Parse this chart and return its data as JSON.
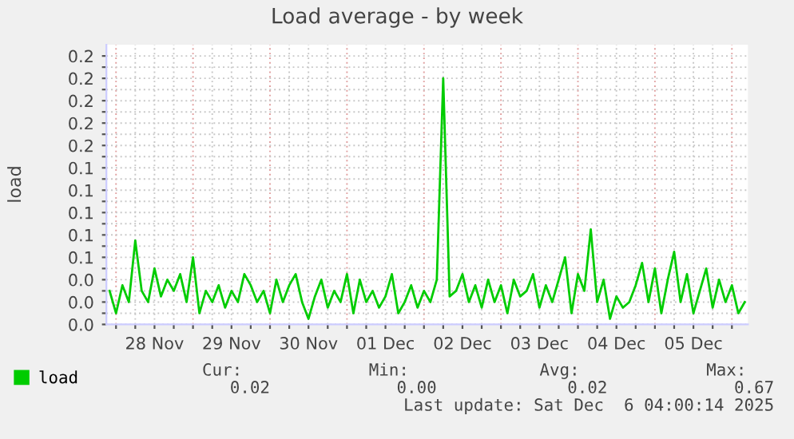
{
  "chart_data": {
    "type": "line",
    "title": "Load average - by week",
    "ylabel": "load",
    "xlim": [
      "2025-11-27T21:00",
      "2025-12-06T05:00"
    ],
    "xticks": [
      {
        "value": "2025-11-28T00:00",
        "label": null
      },
      {
        "value": "2025-11-28T06:00",
        "label": null
      },
      {
        "value": "2025-11-28T12:00",
        "label": "28 Nov"
      },
      {
        "value": "2025-11-28T18:00",
        "label": null
      },
      {
        "value": "2025-11-29T00:00",
        "label": null
      },
      {
        "value": "2025-11-29T06:00",
        "label": null
      },
      {
        "value": "2025-11-29T12:00",
        "label": "29 Nov"
      },
      {
        "value": "2025-11-29T18:00",
        "label": null
      },
      {
        "value": "2025-11-30T00:00",
        "label": null
      },
      {
        "value": "2025-11-30T06:00",
        "label": null
      },
      {
        "value": "2025-11-30T12:00",
        "label": "30 Nov"
      },
      {
        "value": "2025-11-30T18:00",
        "label": null
      },
      {
        "value": "2025-12-01T00:00",
        "label": null
      },
      {
        "value": "2025-12-01T06:00",
        "label": null
      },
      {
        "value": "2025-12-01T12:00",
        "label": "01 Dec"
      },
      {
        "value": "2025-12-01T18:00",
        "label": null
      },
      {
        "value": "2025-12-02T00:00",
        "label": null
      },
      {
        "value": "2025-12-02T06:00",
        "label": null
      },
      {
        "value": "2025-12-02T12:00",
        "label": "02 Dec"
      },
      {
        "value": "2025-12-02T18:00",
        "label": null
      },
      {
        "value": "2025-12-03T00:00",
        "label": null
      },
      {
        "value": "2025-12-03T06:00",
        "label": null
      },
      {
        "value": "2025-12-03T12:00",
        "label": "03 Dec"
      },
      {
        "value": "2025-12-03T18:00",
        "label": null
      },
      {
        "value": "2025-12-04T00:00",
        "label": null
      },
      {
        "value": "2025-12-04T06:00",
        "label": null
      },
      {
        "value": "2025-12-04T12:00",
        "label": "04 Dec"
      },
      {
        "value": "2025-12-04T18:00",
        "label": null
      },
      {
        "value": "2025-12-05T00:00",
        "label": null
      },
      {
        "value": "2025-12-05T06:00",
        "label": null
      },
      {
        "value": "2025-12-05T12:00",
        "label": "05 Dec"
      },
      {
        "value": "2025-12-05T18:00",
        "label": null
      },
      {
        "value": "2025-12-06T00:00",
        "label": null
      }
    ],
    "ylim": [
      0,
      0.25
    ],
    "yticks": [
      {
        "value": 0,
        "label": "0.0"
      },
      {
        "value": 0.01,
        "label": null
      },
      {
        "value": 0.02,
        "label": "0.0"
      },
      {
        "value": 0.03,
        "label": null
      },
      {
        "value": 0.04,
        "label": "0.0"
      },
      {
        "value": 0.05,
        "label": null
      },
      {
        "value": 0.06,
        "label": "0.1"
      },
      {
        "value": 0.07,
        "label": null
      },
      {
        "value": 0.08,
        "label": "0.1"
      },
      {
        "value": 0.09,
        "label": null
      },
      {
        "value": 0.1,
        "label": "0.1"
      },
      {
        "value": 0.11,
        "label": null
      },
      {
        "value": 0.12,
        "label": "0.1"
      },
      {
        "value": 0.13,
        "label": null
      },
      {
        "value": 0.14,
        "label": "0.1"
      },
      {
        "value": 0.15,
        "label": null
      },
      {
        "value": 0.16,
        "label": "0.2"
      },
      {
        "value": 0.17,
        "label": null
      },
      {
        "value": 0.18,
        "label": "0.2"
      },
      {
        "value": 0.19,
        "label": null
      },
      {
        "value": 0.2,
        "label": "0.2"
      },
      {
        "value": 0.21,
        "label": null
      },
      {
        "value": 0.22,
        "label": "0.2"
      },
      {
        "value": 0.23,
        "label": null
      },
      {
        "value": 0.24,
        "label": "0.2"
      }
    ],
    "grid": true,
    "legend": "bottom",
    "marker": "none",
    "line_style": "solid",
    "series": [
      {
        "name": "load",
        "color": "#00cc00",
        "x": [
          "2025-11-27T22:00",
          "2025-11-28T00:00",
          "2025-11-28T02:00",
          "2025-11-28T04:00",
          "2025-11-28T06:00",
          "2025-11-28T08:00",
          "2025-11-28T10:00",
          "2025-11-28T12:00",
          "2025-11-28T14:00",
          "2025-11-28T16:00",
          "2025-11-28T18:00",
          "2025-11-28T20:00",
          "2025-11-28T22:00",
          "2025-11-29T00:00",
          "2025-11-29T02:00",
          "2025-11-29T04:00",
          "2025-11-29T06:00",
          "2025-11-29T08:00",
          "2025-11-29T10:00",
          "2025-11-29T12:00",
          "2025-11-29T14:00",
          "2025-11-29T16:00",
          "2025-11-29T18:00",
          "2025-11-29T20:00",
          "2025-11-29T22:00",
          "2025-11-30T00:00",
          "2025-11-30T02:00",
          "2025-11-30T04:00",
          "2025-11-30T06:00",
          "2025-11-30T08:00",
          "2025-11-30T10:00",
          "2025-11-30T12:00",
          "2025-11-30T14:00",
          "2025-11-30T16:00",
          "2025-11-30T18:00",
          "2025-11-30T20:00",
          "2025-11-30T22:00",
          "2025-12-01T00:00",
          "2025-12-01T02:00",
          "2025-12-01T04:00",
          "2025-12-01T06:00",
          "2025-12-01T08:00",
          "2025-12-01T10:00",
          "2025-12-01T12:00",
          "2025-12-01T14:00",
          "2025-12-01T16:00",
          "2025-12-01T18:00",
          "2025-12-01T20:00",
          "2025-12-01T22:00",
          "2025-12-02T00:00",
          "2025-12-02T02:00",
          "2025-12-02T04:00",
          "2025-12-02T06:00",
          "2025-12-02T08:00",
          "2025-12-02T10:00",
          "2025-12-02T12:00",
          "2025-12-02T14:00",
          "2025-12-02T16:00",
          "2025-12-02T18:00",
          "2025-12-02T20:00",
          "2025-12-02T22:00",
          "2025-12-03T00:00",
          "2025-12-03T02:00",
          "2025-12-03T04:00",
          "2025-12-03T06:00",
          "2025-12-03T08:00",
          "2025-12-03T10:00",
          "2025-12-03T12:00",
          "2025-12-03T14:00",
          "2025-12-03T16:00",
          "2025-12-03T18:00",
          "2025-12-03T20:00",
          "2025-12-03T22:00",
          "2025-12-04T00:00",
          "2025-12-04T02:00",
          "2025-12-04T04:00",
          "2025-12-04T06:00",
          "2025-12-04T08:00",
          "2025-12-04T10:00",
          "2025-12-04T12:00",
          "2025-12-04T14:00",
          "2025-12-04T16:00",
          "2025-12-04T18:00",
          "2025-12-04T20:00",
          "2025-12-04T22:00",
          "2025-12-05T00:00",
          "2025-12-05T02:00",
          "2025-12-05T04:00",
          "2025-12-05T06:00",
          "2025-12-05T08:00",
          "2025-12-05T10:00",
          "2025-12-05T12:00",
          "2025-12-05T14:00",
          "2025-12-05T16:00",
          "2025-12-05T18:00",
          "2025-12-05T20:00",
          "2025-12-05T22:00",
          "2025-12-06T00:00",
          "2025-12-06T02:00",
          "2025-12-06T04:00"
        ],
        "values": [
          0.03,
          0.01,
          0.035,
          0.02,
          0.075,
          0.03,
          0.02,
          0.05,
          0.025,
          0.04,
          0.03,
          0.045,
          0.02,
          0.06,
          0.01,
          0.03,
          0.02,
          0.035,
          0.015,
          0.03,
          0.02,
          0.045,
          0.035,
          0.02,
          0.03,
          0.01,
          0.04,
          0.02,
          0.035,
          0.045,
          0.02,
          0.005,
          0.025,
          0.04,
          0.015,
          0.03,
          0.02,
          0.045,
          0.01,
          0.04,
          0.02,
          0.03,
          0.015,
          0.025,
          0.045,
          0.01,
          0.02,
          0.035,
          0.015,
          0.03,
          0.02,
          0.04,
          0.22,
          0.025,
          0.03,
          0.045,
          0.02,
          0.035,
          0.015,
          0.04,
          0.02,
          0.035,
          0.01,
          0.04,
          0.025,
          0.03,
          0.045,
          0.015,
          0.035,
          0.02,
          0.04,
          0.06,
          0.01,
          0.045,
          0.03,
          0.085,
          0.02,
          0.04,
          0.005,
          0.025,
          0.015,
          0.02,
          0.035,
          0.055,
          0.02,
          0.05,
          0.01,
          0.04,
          0.065,
          0.02,
          0.045,
          0.01,
          0.03,
          0.05,
          0.015,
          0.04,
          0.02,
          0.035,
          0.01,
          0.02
        ]
      }
    ],
    "annotations": [
      "Cur:",
      "Min:",
      "Avg:",
      "Max:",
      "0.02",
      "0.00",
      "0.02",
      "0.67",
      "Last update: Sat Dec  6 04:00:14 2025"
    ]
  }
}
